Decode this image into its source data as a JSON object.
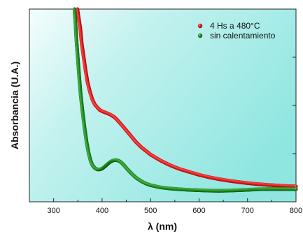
{
  "chart_data": {
    "type": "scatter",
    "xlabel": "λ (nm)",
    "ylabel": "Absorbancia (U.A.)",
    "xlim": [
      250,
      800
    ],
    "ylim": [
      0,
      1
    ],
    "x_ticks": [
      300,
      400,
      500,
      600,
      700,
      800
    ],
    "y_ticks_labeled": false,
    "grid": false,
    "legend_position": "top-right",
    "background": "cyan gradient",
    "series": [
      {
        "name": "4 Hs a 480°C",
        "color": "#e01010",
        "points": [
          [
            349,
            1.0
          ],
          [
            352,
            0.95
          ],
          [
            355,
            0.9
          ],
          [
            358,
            0.82
          ],
          [
            362,
            0.75
          ],
          [
            366,
            0.68
          ],
          [
            370,
            0.62
          ],
          [
            375,
            0.57
          ],
          [
            380,
            0.53
          ],
          [
            385,
            0.505
          ],
          [
            390,
            0.49
          ],
          [
            395,
            0.477
          ],
          [
            400,
            0.47
          ],
          [
            405,
            0.465
          ],
          [
            410,
            0.46
          ],
          [
            415,
            0.455
          ],
          [
            420,
            0.448
          ],
          [
            425,
            0.44
          ],
          [
            430,
            0.428
          ],
          [
            440,
            0.4
          ],
          [
            450,
            0.37
          ],
          [
            460,
            0.34
          ],
          [
            470,
            0.31
          ],
          [
            480,
            0.285
          ],
          [
            490,
            0.265
          ],
          [
            500,
            0.245
          ],
          [
            520,
            0.215
          ],
          [
            540,
            0.19
          ],
          [
            560,
            0.17
          ],
          [
            580,
            0.155
          ],
          [
            600,
            0.14
          ],
          [
            620,
            0.128
          ],
          [
            640,
            0.118
          ],
          [
            660,
            0.11
          ],
          [
            680,
            0.103
          ],
          [
            700,
            0.097
          ],
          [
            720,
            0.092
          ],
          [
            740,
            0.088
          ],
          [
            760,
            0.085
          ],
          [
            780,
            0.082
          ],
          [
            800,
            0.08
          ]
        ]
      },
      {
        "name": "sin calentamiento",
        "color": "#1a8a1a",
        "points": [
          [
            343,
            1.0
          ],
          [
            345,
            0.93
          ],
          [
            347,
            0.84
          ],
          [
            350,
            0.74
          ],
          [
            353,
            0.64
          ],
          [
            356,
            0.55
          ],
          [
            360,
            0.46
          ],
          [
            364,
            0.38
          ],
          [
            368,
            0.31
          ],
          [
            372,
            0.255
          ],
          [
            376,
            0.215
          ],
          [
            380,
            0.19
          ],
          [
            385,
            0.175
          ],
          [
            390,
            0.168
          ],
          [
            395,
            0.168
          ],
          [
            400,
            0.172
          ],
          [
            405,
            0.182
          ],
          [
            410,
            0.193
          ],
          [
            415,
            0.204
          ],
          [
            420,
            0.212
          ],
          [
            425,
            0.216
          ],
          [
            430,
            0.216
          ],
          [
            435,
            0.212
          ],
          [
            440,
            0.203
          ],
          [
            445,
            0.19
          ],
          [
            450,
            0.175
          ],
          [
            460,
            0.148
          ],
          [
            470,
            0.125
          ],
          [
            480,
            0.108
          ],
          [
            490,
            0.095
          ],
          [
            500,
            0.086
          ],
          [
            520,
            0.075
          ],
          [
            540,
            0.069
          ],
          [
            560,
            0.065
          ],
          [
            580,
            0.062
          ],
          [
            600,
            0.06
          ],
          [
            620,
            0.058
          ],
          [
            640,
            0.057
          ],
          [
            660,
            0.058
          ],
          [
            680,
            0.06
          ],
          [
            700,
            0.062
          ],
          [
            720,
            0.065
          ],
          [
            740,
            0.066
          ],
          [
            760,
            0.066
          ],
          [
            780,
            0.066
          ],
          [
            800,
            0.066
          ]
        ]
      }
    ]
  }
}
